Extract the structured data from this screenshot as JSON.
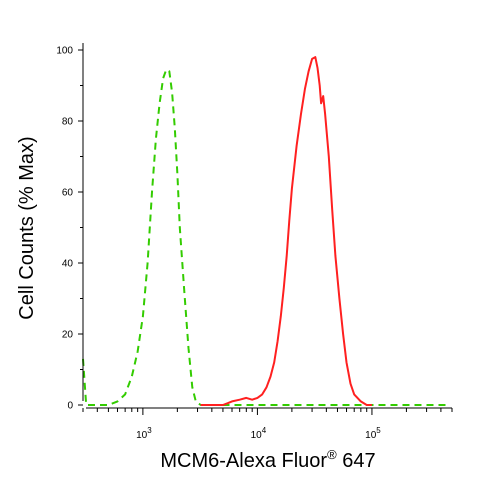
{
  "chart_data": {
    "type": "line",
    "xscale": "log",
    "xlim": [
      300,
      500000
    ],
    "ylim": [
      0,
      100
    ],
    "xlabel": {
      "prefix": "MCM6-Alexa Fluor",
      "sup": "®",
      "suffix": " 647"
    },
    "ylabel": "Cell Counts (% Max)",
    "y_ticks": [
      0,
      20,
      40,
      60,
      80,
      100
    ],
    "x_major_ticks": [
      {
        "value": 1000,
        "base": "10",
        "exp": "3"
      },
      {
        "value": 10000,
        "base": "10",
        "exp": "4"
      },
      {
        "value": 100000,
        "base": "10",
        "exp": "5"
      }
    ],
    "grid": false,
    "series": [
      {
        "color": "#33cc00",
        "style": "dashed",
        "points": [
          [
            300,
            13
          ],
          [
            320,
            0
          ],
          [
            400,
            0
          ],
          [
            500,
            0
          ],
          [
            600,
            1
          ],
          [
            700,
            3
          ],
          [
            800,
            8
          ],
          [
            900,
            15
          ],
          [
            1000,
            25
          ],
          [
            1100,
            40
          ],
          [
            1200,
            60
          ],
          [
            1300,
            75
          ],
          [
            1400,
            85
          ],
          [
            1500,
            92
          ],
          [
            1600,
            94.5
          ],
          [
            1700,
            94
          ],
          [
            1800,
            88
          ],
          [
            1900,
            78
          ],
          [
            2000,
            65
          ],
          [
            2100,
            50
          ],
          [
            2300,
            32
          ],
          [
            2500,
            16
          ],
          [
            2700,
            5
          ],
          [
            2900,
            1
          ],
          [
            3200,
            0
          ],
          [
            6000,
            0
          ],
          [
            20000,
            0
          ],
          [
            100000,
            0
          ],
          [
            450000,
            0
          ]
        ]
      },
      {
        "color": "#ff2020",
        "style": "solid",
        "points": [
          [
            3200,
            0
          ],
          [
            5000,
            0
          ],
          [
            5500,
            0.5
          ],
          [
            6000,
            1
          ],
          [
            7000,
            1.5
          ],
          [
            8000,
            2
          ],
          [
            9000,
            1.5
          ],
          [
            10000,
            2
          ],
          [
            11000,
            3
          ],
          [
            12000,
            5
          ],
          [
            13000,
            8
          ],
          [
            14000,
            12
          ],
          [
            15000,
            18
          ],
          [
            16000,
            25
          ],
          [
            17000,
            33
          ],
          [
            18000,
            42
          ],
          [
            19000,
            52
          ],
          [
            20000,
            61
          ],
          [
            22000,
            73
          ],
          [
            24000,
            82
          ],
          [
            26000,
            89
          ],
          [
            28000,
            94
          ],
          [
            30000,
            97.5
          ],
          [
            32000,
            98
          ],
          [
            33500,
            95
          ],
          [
            35000,
            90
          ],
          [
            36000,
            85
          ],
          [
            37500,
            87
          ],
          [
            39000,
            82
          ],
          [
            42000,
            70
          ],
          [
            45000,
            55
          ],
          [
            48000,
            42
          ],
          [
            52000,
            30
          ],
          [
            56000,
            20
          ],
          [
            60000,
            12
          ],
          [
            65000,
            6
          ],
          [
            70000,
            3
          ],
          [
            80000,
            1
          ],
          [
            90000,
            0
          ],
          [
            100000,
            0
          ]
        ]
      }
    ]
  }
}
